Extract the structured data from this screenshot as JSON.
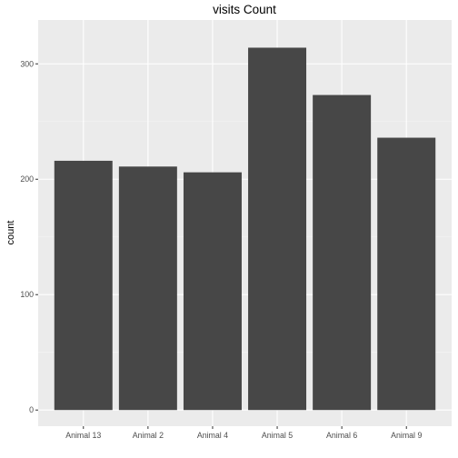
{
  "chart_data": {
    "type": "bar",
    "title": "visits Count",
    "xlabel": "",
    "ylabel": "count",
    "categories": [
      "Animal 13",
      "Animal 2",
      "Animal 4",
      "Animal 5",
      "Animal 6",
      "Animal 9"
    ],
    "values": [
      216,
      211,
      206,
      314,
      273,
      236
    ],
    "ylim": [
      -14,
      338
    ],
    "yticks": [
      0,
      100,
      200,
      300
    ],
    "ytick_labels": [
      "0",
      "100",
      "200",
      "300"
    ],
    "grid": true,
    "legend": "none",
    "colors": {
      "panel_background": "#ebebeb",
      "grid_major": "#ffffff",
      "grid_minor": "#f5f5f5",
      "bar_fill": "#474747",
      "tick_mark": "#333333",
      "tick_text": "#4d4d4d"
    }
  }
}
